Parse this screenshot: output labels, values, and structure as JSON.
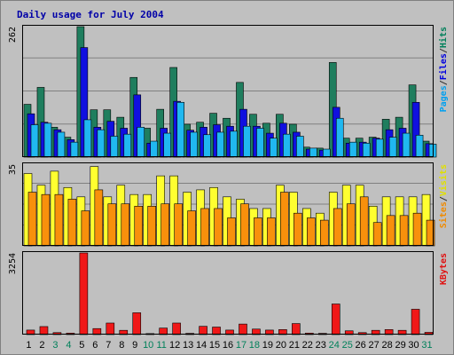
{
  "chart_data": {
    "type": "bar",
    "title": "Daily usage for July 2004",
    "x": [
      "1",
      "2",
      "3",
      "4",
      "5",
      "6",
      "7",
      "8",
      "9",
      "10",
      "11",
      "12",
      "13",
      "14",
      "15",
      "16",
      "17",
      "18",
      "19",
      "20",
      "21",
      "22",
      "23",
      "24",
      "25",
      "26",
      "27",
      "28",
      "29",
      "30",
      "31"
    ],
    "weekend_days": [
      "3",
      "4",
      "10",
      "11",
      "17",
      "18",
      "24",
      "25",
      "31"
    ],
    "panels": [
      {
        "id": "hits_panel",
        "max_label": "262",
        "ylim": [
          0,
          262
        ],
        "grid": true,
        "right_labels": [
          {
            "text": "Pages",
            "color": "#00a0f0"
          },
          {
            "text": "/",
            "color": "#303030"
          },
          {
            "text": "Files",
            "color": "#0000e0"
          },
          {
            "text": "/",
            "color": "#303030"
          },
          {
            "text": "Hits",
            "color": "#00805a"
          }
        ],
        "series": [
          {
            "name": "Hits",
            "color": "#1f7e5e",
            "values": [
              106,
              140,
              60,
              40,
              262,
              95,
              95,
              80,
              160,
              58,
              96,
              180,
              66,
              70,
              88,
              78,
              150,
              86,
              68,
              86,
              66,
              20,
              18,
              190,
              38,
              38,
              40,
              76,
              80,
              145,
              32
            ]
          },
          {
            "name": "Files",
            "color": "#1010e0",
            "values": [
              87,
              70,
              55,
              35,
              220,
              60,
              72,
              58,
              125,
              28,
              58,
              112,
              54,
              60,
              65,
              62,
              96,
              62,
              48,
              68,
              50,
              16,
              14,
              100,
              28,
              30,
              38,
              55,
              58,
              110,
              27
            ]
          },
          {
            "name": "Pages",
            "color": "#20b8f0",
            "values": [
              65,
              68,
              50,
              30,
              75,
              55,
              42,
              46,
              60,
              32,
              48,
              110,
              50,
              45,
              50,
              52,
              62,
              58,
              38,
              46,
              42,
              18,
              16,
              78,
              30,
              28,
              36,
              40,
              48,
              44,
              26
            ]
          }
        ]
      },
      {
        "id": "visits_panel",
        "max_label": "35",
        "ylim": [
          0,
          35
        ],
        "grid": true,
        "right_labels": [
          {
            "text": "Sites",
            "color": "#f08a00"
          },
          {
            "text": "/",
            "color": "#303030"
          },
          {
            "text": "Visits",
            "color": "#e0e000"
          }
        ],
        "series": [
          {
            "name": "Visits",
            "color": "#ffff30",
            "values": [
              31,
              26,
              32,
              25,
              21,
              34,
              21,
              26,
              22,
              22,
              30,
              30,
              23,
              24,
              25,
              21,
              20,
              16,
              16,
              26,
              23,
              16,
              14,
              23,
              26,
              26,
              17,
              21,
              21,
              21,
              22
            ]
          },
          {
            "name": "Sites",
            "color": "#f8900c",
            "values": [
              23,
              22,
              22,
              20,
              15,
              24,
              18,
              18,
              17,
              17,
              18,
              18,
              15,
              16,
              16,
              12,
              18,
              12,
              12,
              23,
              14,
              12,
              11,
              16,
              18,
              21,
              10,
              13,
              13,
              14,
              11
            ]
          }
        ]
      },
      {
        "id": "kbytes_panel",
        "max_label": "3254",
        "ylim": [
          0,
          3254
        ],
        "grid": false,
        "right_labels": [
          {
            "text": "KBytes",
            "color": "#e01010"
          }
        ],
        "series": [
          {
            "name": "KBytes",
            "color": "#f01818",
            "values": [
              180,
              320,
              80,
              60,
              3254,
              240,
              460,
              170,
              870,
              40,
              260,
              460,
              50,
              330,
              300,
              180,
              420,
              220,
              180,
              200,
              440,
              60,
              50,
              1220,
              150,
              80,
              170,
              200,
              170,
              1010,
              90
            ]
          }
        ]
      }
    ]
  }
}
